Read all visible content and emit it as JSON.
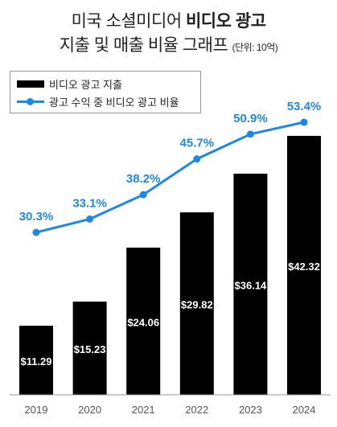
{
  "title": {
    "line1_prefix": "미국 소셜미디어 ",
    "line1_bold": "비디오 광고",
    "line2": "지출 및 매출 비율 그래프",
    "unit": "(단위: 10억)"
  },
  "colors": {
    "bar": "#000000",
    "line": "#1e88e5",
    "bar_label": "#ffffff",
    "axis": "#999999"
  },
  "chart_data": {
    "type": "bar",
    "categories": [
      "2019",
      "2020",
      "2021",
      "2022",
      "2023",
      "2024"
    ],
    "series": [
      {
        "name": "비디오 광고 지출",
        "type": "bar",
        "values": [
          11.29,
          15.23,
          24.06,
          29.82,
          36.14,
          42.32
        ],
        "labels": [
          "$11.29",
          "$15.23",
          "$24.06",
          "$29.82",
          "$36.14",
          "$42.32"
        ]
      },
      {
        "name": "광고 수익 중 비디오 광고 비율",
        "type": "line",
        "values": [
          30.3,
          33.1,
          38.2,
          45.7,
          50.9,
          53.4
        ],
        "labels": [
          "30.3%",
          "33.1%",
          "38.2%",
          "45.7%",
          "50.9%",
          "53.4%"
        ]
      }
    ],
    "legend_position": "top-left",
    "grid": false
  }
}
